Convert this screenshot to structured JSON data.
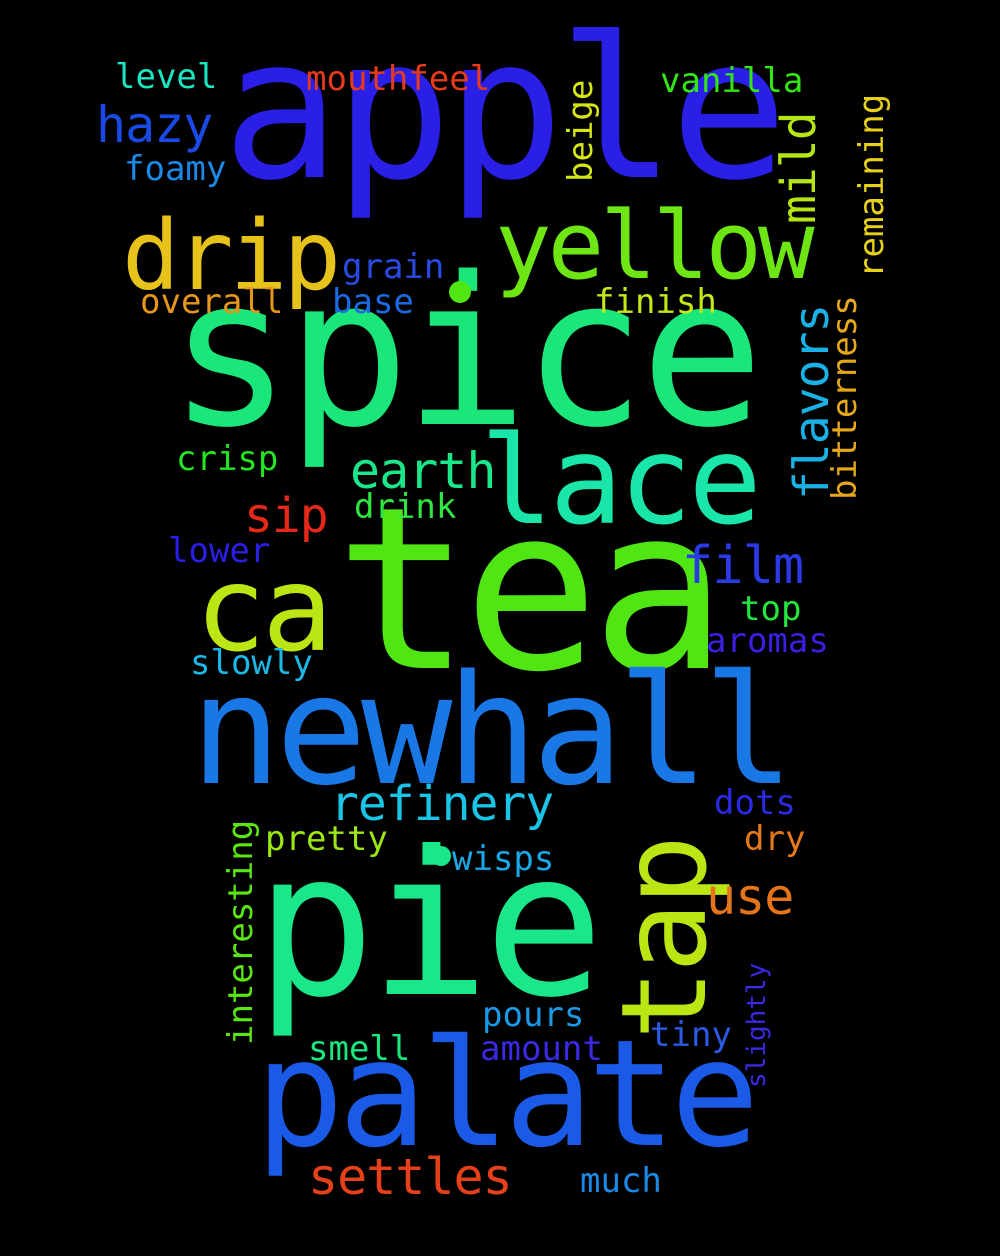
{
  "word_cloud": {
    "background": "#000000",
    "words": [
      {
        "text": "apple",
        "color": "#2a1fe6"
      },
      {
        "text": "spice",
        "color": "#1ae67a"
      },
      {
        "text": "tea",
        "color": "#50e614"
      },
      {
        "text": "newhall",
        "color": "#1a78e6"
      },
      {
        "text": "pie",
        "color": "#1ae68a"
      },
      {
        "text": "palate",
        "color": "#1a5ae6"
      },
      {
        "text": "tap",
        "color": "#bbe614"
      },
      {
        "text": "lace",
        "color": "#1ae6aa"
      },
      {
        "text": "ca",
        "color": "#bbe614"
      },
      {
        "text": "yellow",
        "color": "#6ee614"
      },
      {
        "text": "drip",
        "color": "#e6c21a"
      },
      {
        "text": "refinery",
        "color": "#1ac4e6"
      },
      {
        "text": "earth",
        "color": "#1ae68a"
      },
      {
        "text": "film",
        "color": "#2a3ae6"
      },
      {
        "text": "settles",
        "color": "#e6401a"
      },
      {
        "text": "use",
        "color": "#e6741a"
      },
      {
        "text": "hazy",
        "color": "#1a4ae6"
      },
      {
        "text": "flavors",
        "color": "#1ab2e6"
      },
      {
        "text": "mild",
        "color": "#b4e614"
      },
      {
        "text": "sip",
        "color": "#e6281a"
      },
      {
        "text": "mouthfeel",
        "color": "#e63a1a"
      },
      {
        "text": "vanilla",
        "color": "#32e614"
      },
      {
        "text": "level",
        "color": "#1ae6c4"
      },
      {
        "text": "foamy",
        "color": "#1a8ae6"
      },
      {
        "text": "beige",
        "color": "#d6e614"
      },
      {
        "text": "remaining",
        "color": "#e6d01a"
      },
      {
        "text": "bitterness",
        "color": "#e6a81a"
      },
      {
        "text": "grain",
        "color": "#2a4ae6"
      },
      {
        "text": "base",
        "color": "#1a6ae6"
      },
      {
        "text": "overall",
        "color": "#e6961a"
      },
      {
        "text": "finish",
        "color": "#c8e614"
      },
      {
        "text": "crisp",
        "color": "#24e620"
      },
      {
        "text": "drink",
        "color": "#30e640"
      },
      {
        "text": "lower",
        "color": "#2a1fe6"
      },
      {
        "text": "top",
        "color": "#24e640"
      },
      {
        "text": "aromas",
        "color": "#3a1fe6"
      },
      {
        "text": "slowly",
        "color": "#1ab8e6"
      },
      {
        "text": "dots",
        "color": "#2a2ae6"
      },
      {
        "text": "dry",
        "color": "#e67a1a"
      },
      {
        "text": "pretty",
        "color": "#9ce614"
      },
      {
        "text": "wisps",
        "color": "#1aa8e6"
      },
      {
        "text": "interesting",
        "color": "#5ae614"
      },
      {
        "text": "pours",
        "color": "#1a9ae6"
      },
      {
        "text": "tiny",
        "color": "#2a5ae6"
      },
      {
        "text": "slightly",
        "color": "#3a2ae6"
      },
      {
        "text": "smell",
        "color": "#1ae680"
      },
      {
        "text": "amount",
        "color": "#3a2ae6"
      },
      {
        "text": "much",
        "color": "#1a8ae6"
      }
    ]
  }
}
